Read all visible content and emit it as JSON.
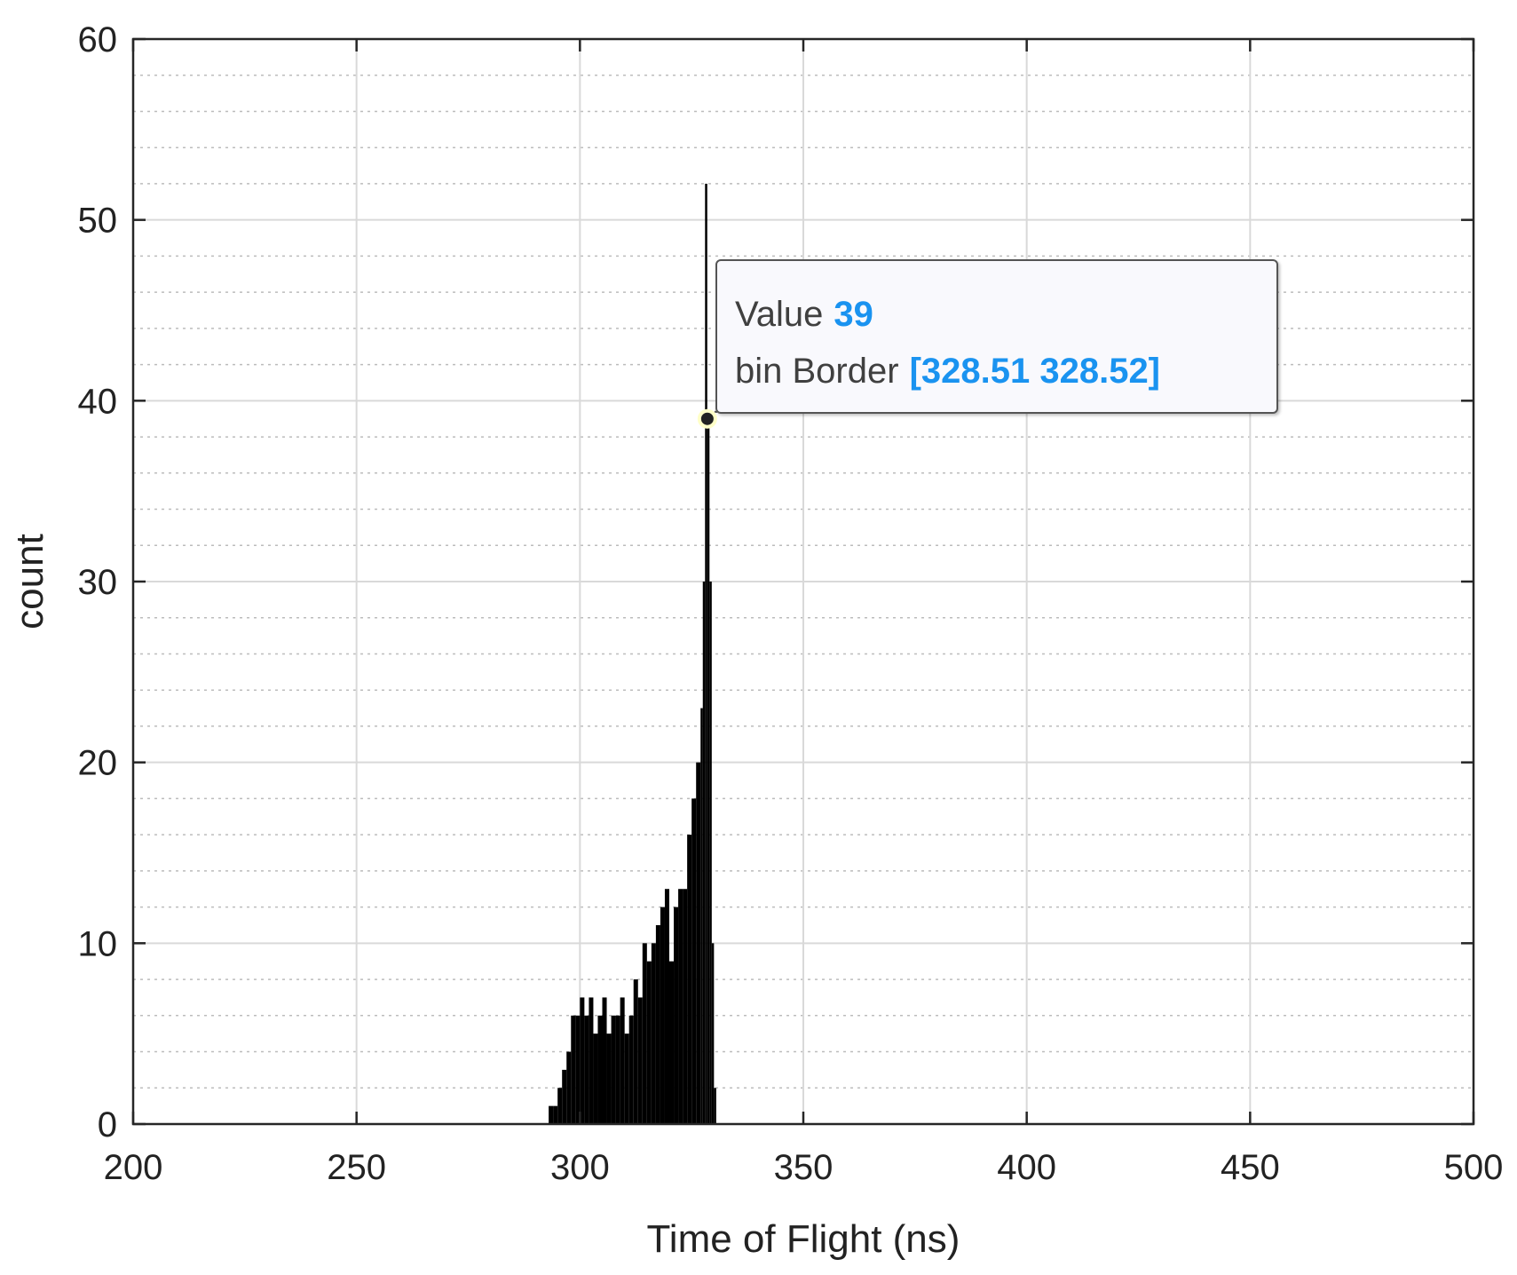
{
  "chart_data": {
    "type": "bar",
    "title": "",
    "xlabel": "Time of Flight (ns)",
    "ylabel": "count",
    "xlim": [
      200,
      500
    ],
    "ylim": [
      0,
      60
    ],
    "xticks": [
      200,
      250,
      300,
      350,
      400,
      450,
      500
    ],
    "yticks": [
      0,
      10,
      20,
      30,
      40,
      50,
      60
    ],
    "ytick_labels": [
      "0",
      "10",
      "20",
      "30",
      "40",
      "50",
      "60"
    ],
    "xtick_labels": [
      "200",
      "250",
      "300",
      "350",
      "400",
      "450",
      "500"
    ],
    "grid": true,
    "minor_grid_y": true,
    "color": "#000000",
    "series": [
      {
        "x": [
          293,
          294,
          295,
          296,
          297,
          298,
          299,
          300,
          301,
          302,
          303,
          304,
          305,
          306,
          307,
          308,
          309,
          310,
          311,
          312,
          313,
          314,
          315,
          316,
          317,
          318,
          319,
          320,
          321,
          322,
          323,
          324,
          325,
          326,
          327,
          327.5,
          328,
          328.5,
          329,
          329.5,
          330
        ],
        "values": [
          1,
          1,
          2,
          3,
          4,
          6,
          6,
          7,
          6,
          7,
          5,
          6,
          7,
          5,
          6,
          6,
          7,
          5,
          6,
          8,
          7,
          10,
          9,
          10,
          11,
          12,
          13,
          9,
          12,
          13,
          13,
          16,
          18,
          20,
          23,
          30,
          52,
          39,
          30,
          10,
          2
        ]
      }
    ],
    "datatip": {
      "value_label": "Value",
      "value": "39",
      "bin_label": "bin Border",
      "bin_value": "[328.51 328.52]",
      "x": 328.515,
      "y": 39
    }
  }
}
